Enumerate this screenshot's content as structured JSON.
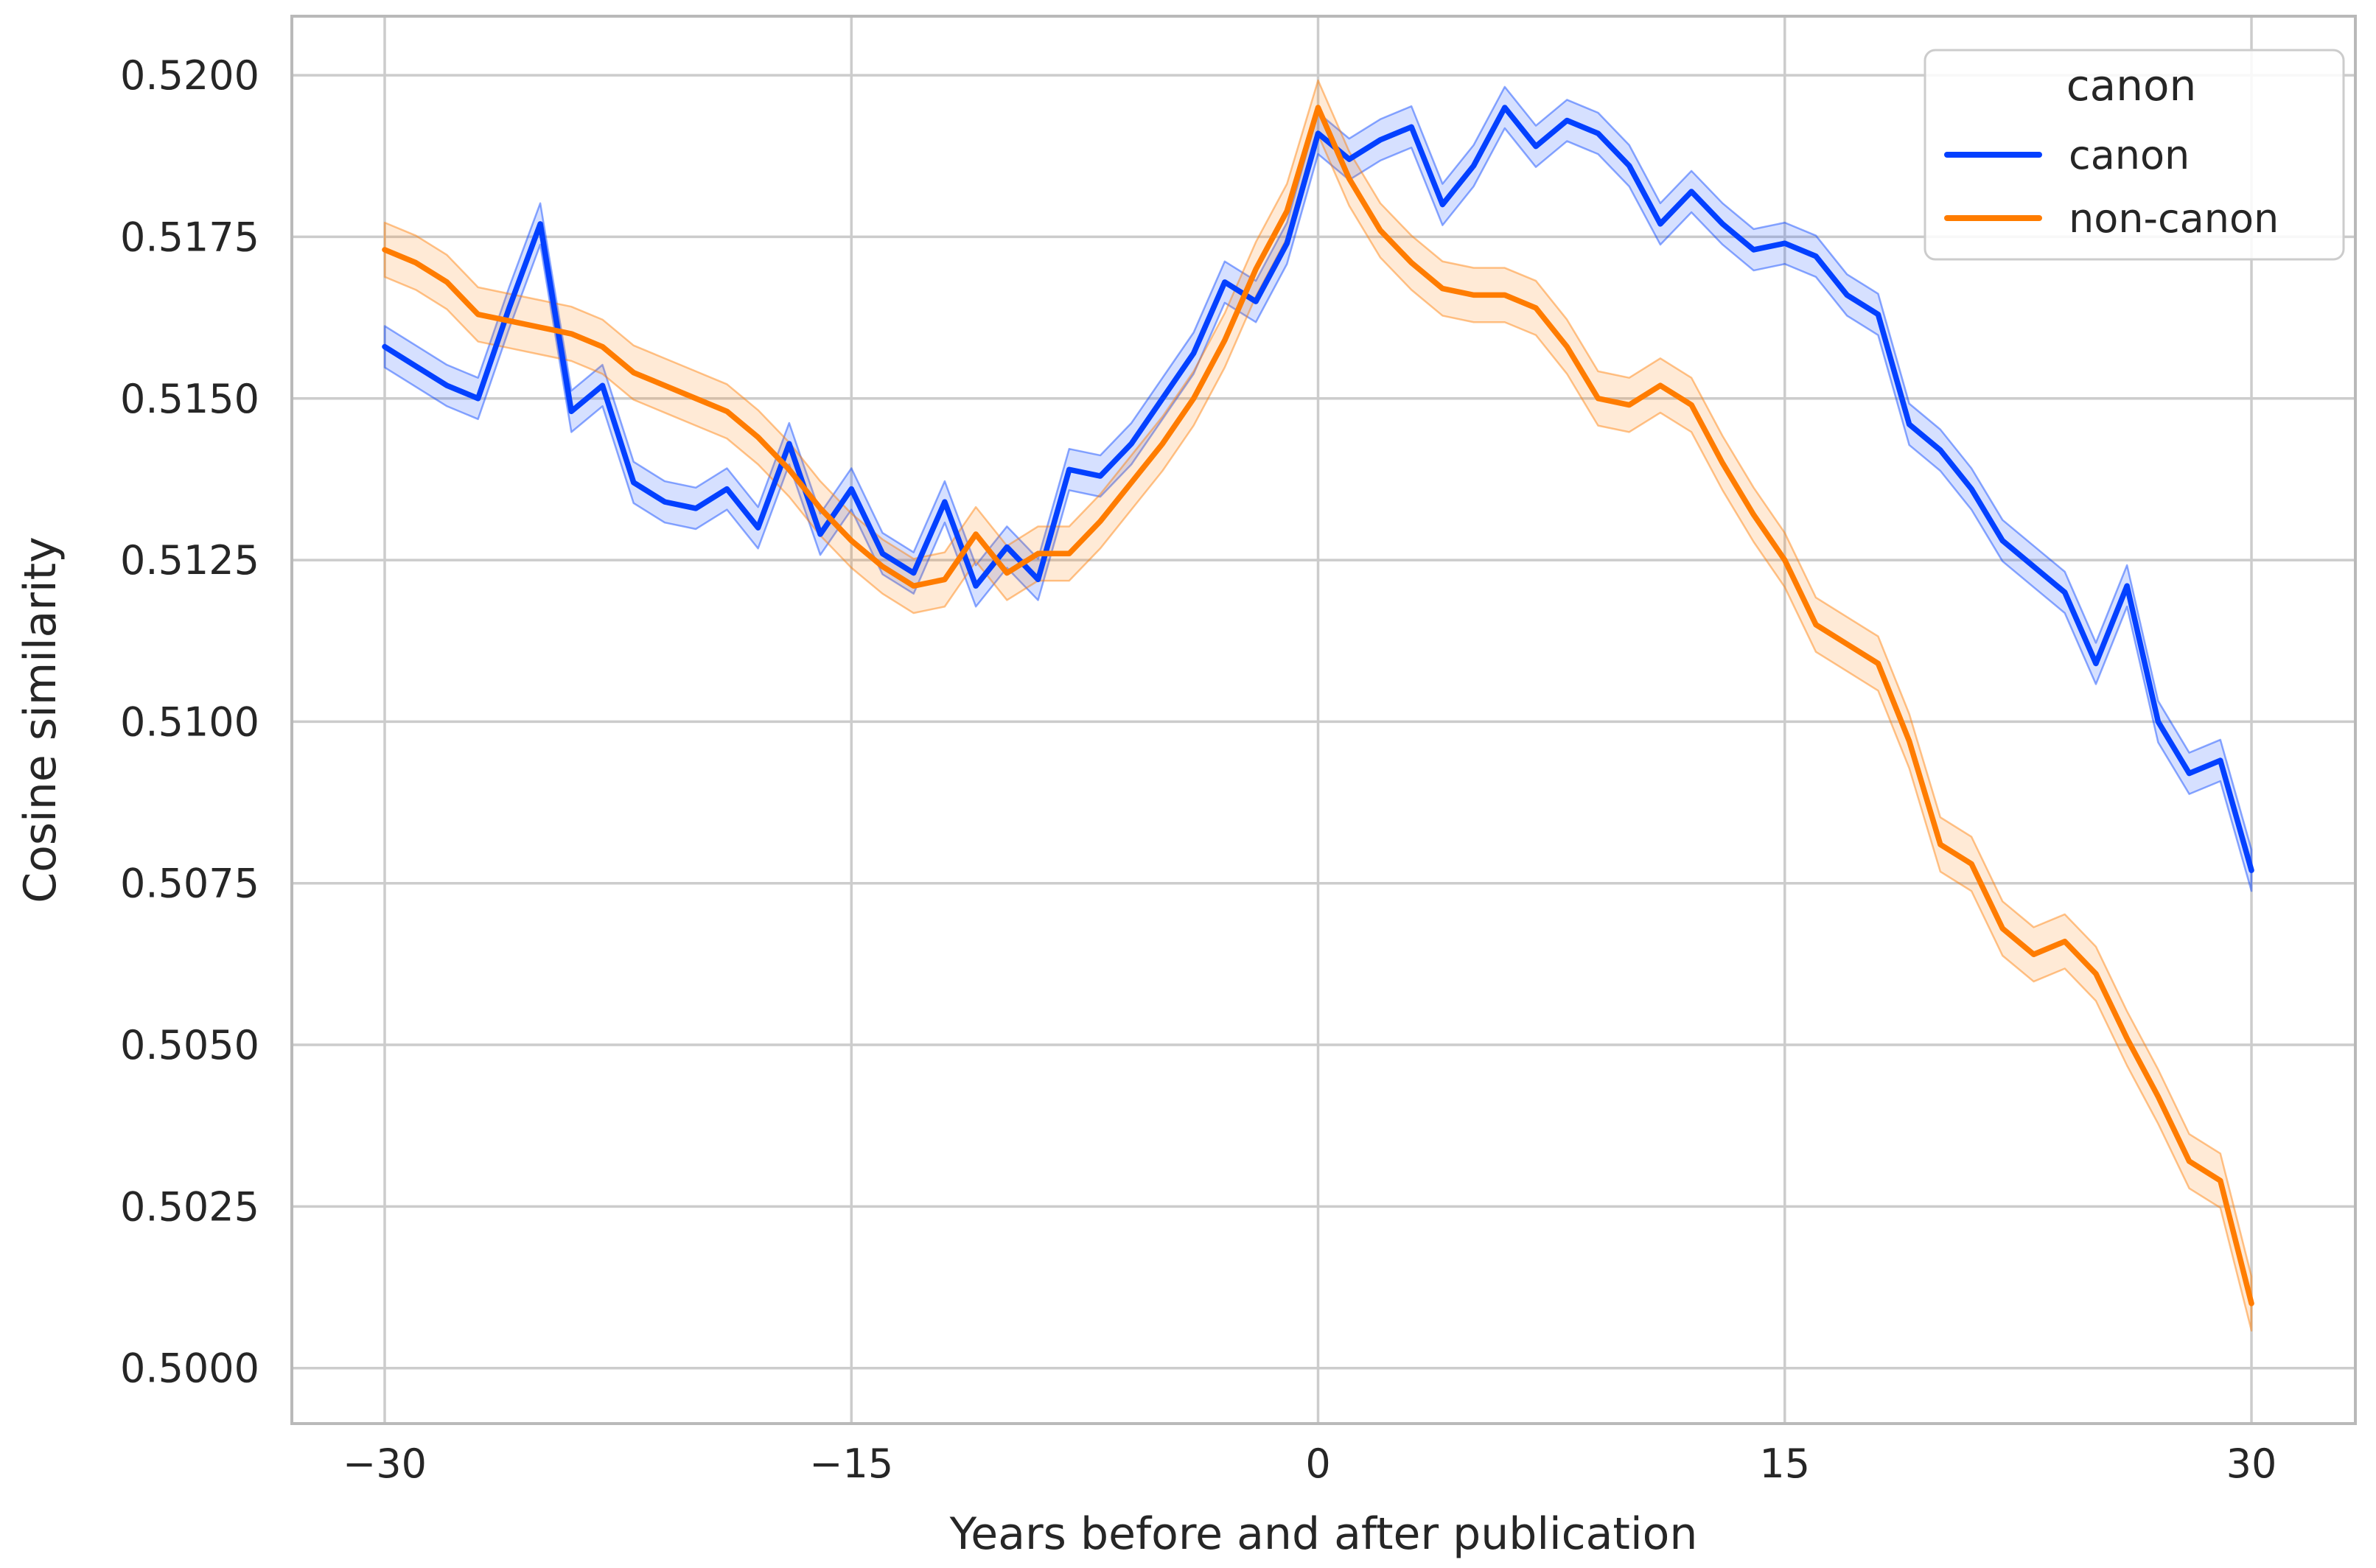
{
  "chart_data": {
    "type": "line",
    "title": "",
    "xlabel": "Years before and after publication",
    "ylabel": "Cosine similarity",
    "x_range": [
      -30,
      30
    ],
    "x": [
      -30,
      -29,
      -28,
      -27,
      -26,
      -25,
      -24,
      -23,
      -22,
      -21,
      -20,
      -19,
      -18,
      -17,
      -16,
      -15,
      -14,
      -13,
      -12,
      -11,
      -10,
      -9,
      -8,
      -7,
      -6,
      -5,
      -4,
      -3,
      -2,
      -1,
      0,
      1,
      2,
      3,
      4,
      5,
      6,
      7,
      8,
      9,
      10,
      11,
      12,
      13,
      14,
      15,
      16,
      17,
      18,
      19,
      20,
      21,
      22,
      23,
      24,
      25,
      26,
      27,
      28,
      29,
      30
    ],
    "series": [
      {
        "name": "canon",
        "color": "#0340ff",
        "band_halfwidth": 0.00032,
        "values": [
          0.5158,
          0.5155,
          0.5152,
          0.515,
          0.5164,
          0.5177,
          0.5148,
          0.5152,
          0.5137,
          0.5134,
          0.5133,
          0.5136,
          0.513,
          0.5143,
          0.5129,
          0.5136,
          0.5126,
          0.5123,
          0.5134,
          0.5121,
          0.5127,
          0.5122,
          0.5139,
          0.5138,
          0.5143,
          0.515,
          0.5157,
          0.5168,
          0.5165,
          0.5174,
          0.5191,
          0.5187,
          0.519,
          0.5192,
          0.518,
          0.5186,
          0.5195,
          0.5189,
          0.5193,
          0.5191,
          0.5186,
          0.5177,
          0.5182,
          0.5177,
          0.5173,
          0.5174,
          0.5172,
          0.5166,
          0.5163,
          0.5146,
          0.5142,
          0.5136,
          0.5128,
          0.5124,
          0.512,
          0.5109,
          0.5121,
          0.51,
          0.5092,
          0.5094,
          0.5077
        ]
      },
      {
        "name": "non-canon",
        "color": "#ff7c00",
        "band_halfwidth": 0.00042,
        "values": [
          0.5173,
          0.5171,
          0.5168,
          0.5163,
          0.5162,
          0.5161,
          0.516,
          0.5158,
          0.5154,
          0.5152,
          0.515,
          0.5148,
          0.5144,
          0.5139,
          0.5133,
          0.5128,
          0.5124,
          0.5121,
          0.5122,
          0.5129,
          0.5123,
          0.5126,
          0.5126,
          0.5131,
          0.5137,
          0.5143,
          0.515,
          0.5159,
          0.517,
          0.5179,
          0.5195,
          0.5184,
          0.5176,
          0.5171,
          0.5167,
          0.5166,
          0.5166,
          0.5164,
          0.5158,
          0.515,
          0.5149,
          0.5152,
          0.5149,
          0.514,
          0.5132,
          0.5125,
          0.5115,
          0.5112,
          0.5109,
          0.5097,
          0.5081,
          0.5078,
          0.5068,
          0.5064,
          0.5066,
          0.5061,
          0.5051,
          0.5042,
          0.5032,
          0.5029,
          0.501
        ]
      }
    ],
    "xticks": {
      "values": [
        -30,
        -15,
        0,
        15,
        30
      ],
      "labels": [
        "−30",
        "−15",
        "0",
        "15",
        "30"
      ]
    },
    "yticks": {
      "values": [
        0.5,
        0.5025,
        0.505,
        0.5075,
        0.51,
        0.5125,
        0.515,
        0.5175,
        0.52
      ],
      "labels": [
        "0.5000",
        "0.5025",
        "0.5050",
        "0.5075",
        "0.5100",
        "0.5125",
        "0.5150",
        "0.5175",
        "0.5200"
      ]
    },
    "xlim": [
      -32.99,
      33.35
    ],
    "ylim": [
      0.49914,
      0.52091
    ],
    "grid": true,
    "legend": {
      "title": "canon",
      "entries": [
        "canon",
        "non-canon"
      ],
      "position": "upper right"
    },
    "colors": {
      "grid": "#cccccc",
      "spine": "#b9b9b9",
      "text": "#262626",
      "band_fill_alpha": 0.16,
      "band_edge_alpha": 0.45,
      "legend_border": "#cccccc",
      "legend_background": "rgba(255,255,255,0.85)"
    }
  }
}
